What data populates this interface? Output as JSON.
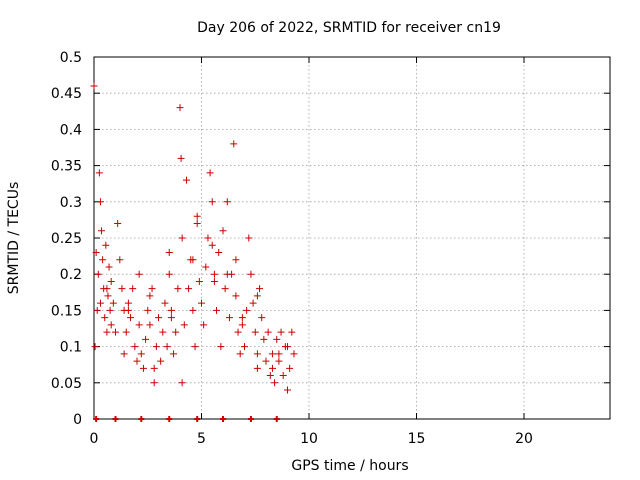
{
  "chart_data": {
    "type": "scatter",
    "title": "Day 206 of 2022, SRMTID for receiver cn19",
    "xlabel": "GPS time / hours",
    "ylabel": "SRMTID / TECUs",
    "xlim": [
      0,
      24
    ],
    "ylim": [
      0,
      0.5
    ],
    "x_ticks": [
      0,
      5,
      10,
      15,
      20
    ],
    "x_tick_labels": [
      "0",
      "5",
      "10",
      "15",
      "20"
    ],
    "y_ticks": [
      0,
      0.05,
      0.1,
      0.15,
      0.2,
      0.25,
      0.3,
      0.35,
      0.4,
      0.45,
      0.5
    ],
    "y_tick_labels": [
      "0",
      "0.05",
      "0.1",
      "0.15",
      "0.2",
      "0.25",
      "0.3",
      "0.35",
      "0.4",
      "0.45",
      "0.5"
    ],
    "grid": true,
    "marker": "plus",
    "series": [
      {
        "name": "SRMTID",
        "color": "#cc0000",
        "x": [
          0.0,
          0.05,
          0.1,
          0.15,
          0.2,
          0.25,
          0.3,
          0.35,
          0.4,
          0.45,
          0.5,
          0.55,
          0.6,
          0.65,
          0.7,
          0.75,
          0.8,
          0.9,
          1.0,
          1.1,
          1.2,
          1.3,
          1.4,
          1.5,
          1.6,
          1.7,
          1.8,
          1.9,
          2.0,
          2.1,
          2.2,
          2.3,
          2.4,
          2.5,
          2.6,
          2.7,
          2.8,
          2.9,
          3.0,
          3.1,
          3.2,
          3.3,
          3.4,
          3.5,
          3.6,
          3.7,
          3.8,
          3.9,
          4.0,
          4.05,
          4.1,
          4.2,
          4.3,
          4.4,
          4.5,
          4.6,
          4.7,
          4.8,
          4.9,
          5.0,
          5.1,
          5.2,
          5.3,
          5.4,
          5.5,
          5.6,
          5.7,
          5.8,
          5.9,
          6.0,
          6.1,
          6.2,
          6.3,
          6.4,
          6.5,
          6.6,
          6.7,
          6.8,
          6.9,
          7.0,
          7.1,
          7.2,
          7.3,
          7.4,
          7.5,
          7.6,
          7.7,
          7.8,
          7.9,
          8.0,
          8.1,
          8.2,
          8.3,
          8.4,
          8.5,
          8.6,
          8.7,
          8.8,
          8.9,
          9.0,
          9.1,
          9.2,
          9.3,
          0.3,
          0.8,
          1.4,
          2.1,
          2.8,
          3.5,
          4.1,
          4.8,
          5.5,
          6.2,
          6.9,
          7.6,
          8.3,
          9.0,
          0.6,
          1.6,
          2.6,
          3.6,
          4.6,
          5.6,
          6.6,
          7.6,
          8.6
        ],
        "y": [
          0.46,
          0.1,
          0.23,
          0.15,
          0.2,
          0.34,
          0.3,
          0.26,
          0.22,
          0.18,
          0.14,
          0.24,
          0.12,
          0.17,
          0.21,
          0.15,
          0.19,
          0.16,
          0.12,
          0.27,
          0.22,
          0.18,
          0.15,
          0.12,
          0.16,
          0.14,
          0.18,
          0.1,
          0.08,
          0.13,
          0.09,
          0.07,
          0.11,
          0.15,
          0.13,
          0.18,
          0.05,
          0.1,
          0.14,
          0.08,
          0.12,
          0.16,
          0.1,
          0.2,
          0.14,
          0.09,
          0.12,
          0.18,
          0.43,
          0.36,
          0.25,
          0.13,
          0.33,
          0.18,
          0.22,
          0.15,
          0.1,
          0.27,
          0.19,
          0.16,
          0.13,
          0.21,
          0.25,
          0.34,
          0.3,
          0.2,
          0.15,
          0.23,
          0.1,
          0.26,
          0.18,
          0.3,
          0.14,
          0.2,
          0.38,
          0.17,
          0.12,
          0.09,
          0.13,
          0.1,
          0.15,
          0.25,
          0.2,
          0.16,
          0.12,
          0.07,
          0.18,
          0.14,
          0.11,
          0.08,
          0.12,
          0.06,
          0.09,
          0.05,
          0.11,
          0.08,
          0.12,
          0.06,
          0.1,
          0.04,
          0.07,
          0.12,
          0.09,
          0.16,
          0.13,
          0.09,
          0.2,
          0.07,
          0.23,
          0.05,
          0.28,
          0.24,
          0.2,
          0.14,
          0.09,
          0.07,
          0.1,
          0.18,
          0.15,
          0.17,
          0.15,
          0.22,
          0.19,
          0.22,
          0.17,
          0.09
        ],
        "floor_x": [
          0.1,
          1.0,
          2.2,
          3.5,
          4.8,
          6.0,
          7.3,
          8.5
        ]
      }
    ]
  }
}
